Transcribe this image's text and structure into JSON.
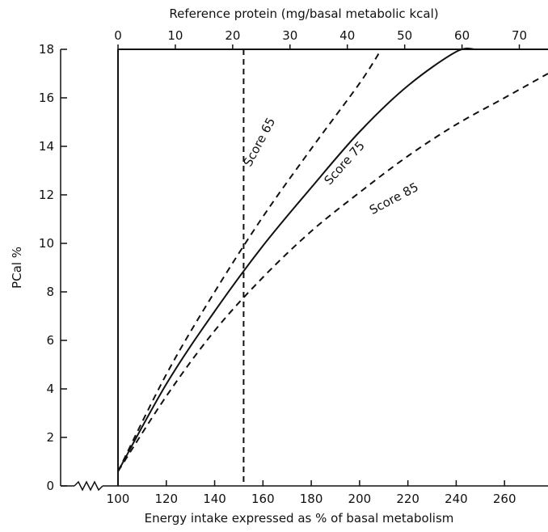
{
  "chart_data": {
    "type": "line",
    "xlabel": "Energy intake expressed as % of basal metabolism",
    "ylabel": "PCal %",
    "x2label": "Reference protein (mg/basal metabolic kcal)",
    "xlim": [
      100,
      278
    ],
    "ylim": [
      0,
      18
    ],
    "x2lim": [
      0,
      75
    ],
    "x_ticks": [
      "100",
      "120",
      "140",
      "160",
      "180",
      "200",
      "220",
      "240",
      "260"
    ],
    "y_ticks": [
      "0",
      "2",
      "4",
      "6",
      "8",
      "10",
      "12",
      "14",
      "16",
      "18"
    ],
    "x2_ticks": [
      "0",
      "10",
      "20",
      "30",
      "40",
      "50",
      "60",
      "70"
    ],
    "grid": false,
    "series": [
      {
        "name": "Score 65",
        "style": "dashed",
        "x": [
          100,
          120,
          140,
          160,
          180,
          200,
          209
        ],
        "y": [
          0.6,
          4.6,
          8.0,
          11.1,
          13.9,
          16.6,
          18.0
        ]
      },
      {
        "name": "Score 75",
        "style": "solid",
        "x": [
          100,
          120,
          140,
          160,
          180,
          200,
          220,
          240,
          248
        ],
        "y": [
          0.6,
          4.2,
          7.2,
          9.9,
          12.3,
          14.6,
          16.5,
          17.9,
          18.0
        ]
      },
      {
        "name": "Score 85",
        "style": "dashed",
        "x": [
          100,
          120,
          140,
          160,
          180,
          200,
          220,
          240,
          260,
          278
        ],
        "y": [
          0.6,
          3.7,
          6.4,
          8.6,
          10.5,
          12.1,
          13.6,
          14.9,
          16.0,
          17.0
        ]
      }
    ],
    "reference_line": {
      "x": 152,
      "style": "dashed"
    },
    "annotations": [
      {
        "text": "Score 65",
        "x": 160,
        "y": 14.1,
        "angle": -62
      },
      {
        "text": "Score 75",
        "x": 195,
        "y": 13.2,
        "angle": -48
      },
      {
        "text": "Score 85",
        "x": 215,
        "y": 11.7,
        "angle": -28
      }
    ]
  }
}
